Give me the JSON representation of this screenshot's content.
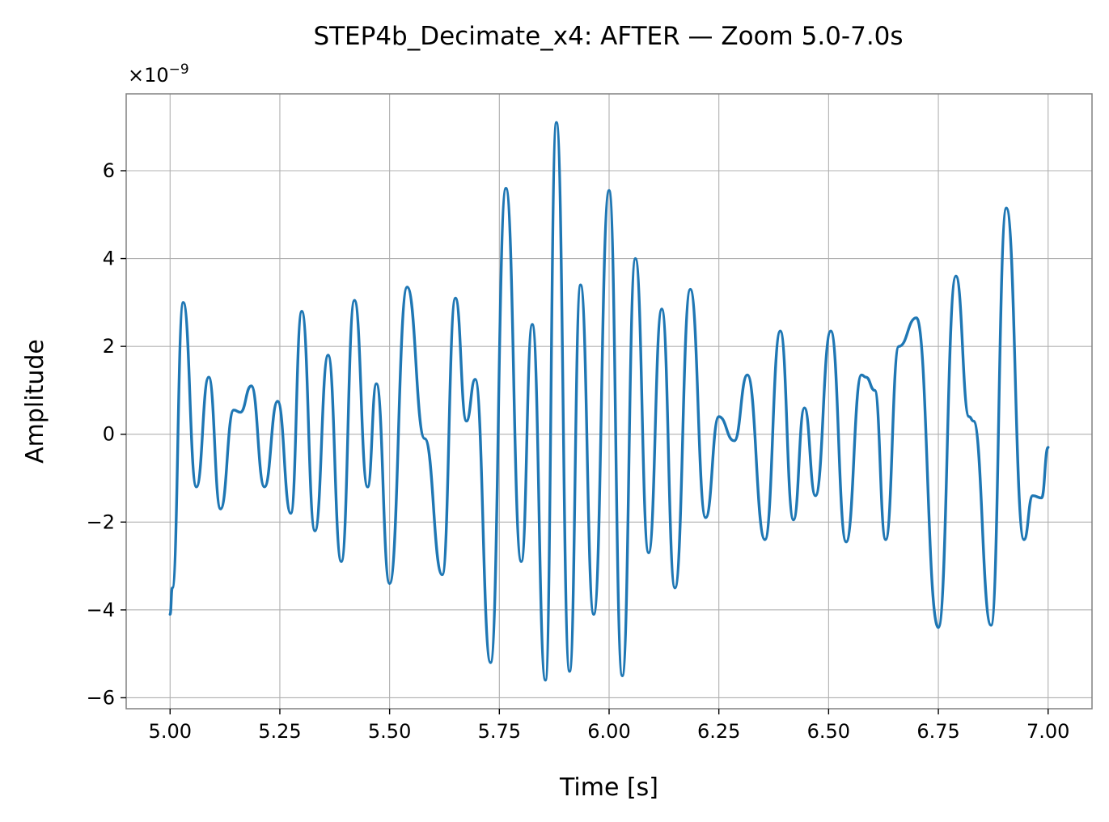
{
  "chart_data": {
    "type": "line",
    "title": "STEP4b_Decimate_x4: AFTER — Zoom 5.0-7.0s",
    "xlabel": "Time [s]",
    "ylabel": "Amplitude",
    "offset_text": {
      "base": "×10",
      "exponent": "−9"
    },
    "xlim": [
      4.9,
      7.1
    ],
    "ylim": [
      -6.25,
      7.75
    ],
    "x_ticks": [
      5.0,
      5.25,
      5.5,
      5.75,
      6.0,
      6.25,
      6.5,
      6.75,
      7.0
    ],
    "x_tick_labels": [
      "5.00",
      "5.25",
      "5.50",
      "5.75",
      "6.00",
      "6.25",
      "6.50",
      "6.75",
      "7.00"
    ],
    "y_ticks": [
      -6,
      -4,
      -2,
      0,
      2,
      4,
      6
    ],
    "y_tick_labels": [
      "−6",
      "−4",
      "−2",
      "0",
      "2",
      "4",
      "6"
    ],
    "grid": true,
    "color": "#1f77b4",
    "series": [
      {
        "x": [
          5.0,
          5.005,
          5.03,
          5.06,
          5.088,
          5.115,
          5.145,
          5.16,
          5.185,
          5.215,
          5.245,
          5.275,
          5.3,
          5.33,
          5.36,
          5.39,
          5.42,
          5.45,
          5.47,
          5.5,
          5.54,
          5.58,
          5.62,
          5.65,
          5.675,
          5.695,
          5.73,
          5.765,
          5.8,
          5.825,
          5.855,
          5.88,
          5.91,
          5.935,
          5.965,
          6.0,
          6.03,
          6.06,
          6.09,
          6.12,
          6.15,
          6.185,
          6.22,
          6.25,
          6.285,
          6.315,
          6.355,
          6.39,
          6.42,
          6.445,
          6.47,
          6.505,
          6.54,
          6.575,
          6.585,
          6.605,
          6.63,
          6.66,
          6.7,
          6.75,
          6.79,
          6.82,
          6.83,
          6.87,
          6.905,
          6.945,
          6.965,
          6.985,
          7.0
        ],
        "y": [
          -4.1,
          -3.5,
          3.0,
          -1.2,
          1.3,
          -1.7,
          0.55,
          0.5,
          1.1,
          -1.2,
          0.75,
          -1.8,
          2.8,
          -2.2,
          1.8,
          -2.9,
          3.05,
          -1.2,
          1.15,
          -3.4,
          3.35,
          -0.1,
          -3.2,
          3.1,
          0.3,
          1.25,
          -5.2,
          5.6,
          -2.9,
          2.5,
          -5.6,
          7.1,
          -5.4,
          3.4,
          -4.1,
          5.55,
          -5.5,
          4.0,
          -2.7,
          2.85,
          -3.5,
          3.3,
          -1.9,
          0.4,
          -0.15,
          1.35,
          -2.4,
          2.35,
          -1.95,
          0.6,
          -1.4,
          2.35,
          -2.45,
          1.35,
          1.3,
          1.0,
          -2.4,
          2.0,
          2.65,
          -4.4,
          3.6,
          0.4,
          0.3,
          -4.35,
          5.15,
          -2.4,
          -1.4,
          -1.45,
          -0.3
        ]
      }
    ]
  }
}
